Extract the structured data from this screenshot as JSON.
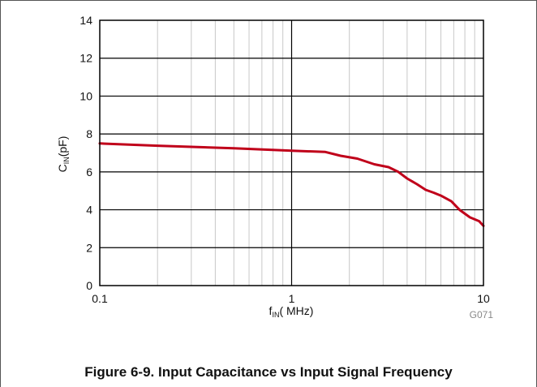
{
  "chart_data": {
    "type": "line",
    "title": "",
    "xlabel": {
      "main": "f",
      "sub": "IN",
      "rest": "( MHz)"
    },
    "ylabel": {
      "main": "C",
      "sub": "IN",
      "rest": "(pF)"
    },
    "xscale": "log",
    "xlim": [
      0.1,
      10
    ],
    "ylim": [
      0,
      14
    ],
    "x_ticks": [
      0.1,
      1,
      10
    ],
    "x_tick_labels": [
      "0.1",
      "1",
      "10"
    ],
    "y_ticks": [
      0,
      2,
      4,
      6,
      8,
      10,
      12,
      14
    ],
    "y_tick_labels": [
      "0",
      "2",
      "4",
      "6",
      "8",
      "10",
      "12",
      "14"
    ],
    "grid": true,
    "series": [
      {
        "color": "#c0001a",
        "x": [
          0.1,
          0.2,
          0.5,
          1.0,
          1.5,
          1.8,
          2.2,
          2.7,
          3.2,
          3.6,
          4.0,
          4.5,
          5.0,
          5.5,
          6.0,
          6.8,
          7.5,
          8.5,
          9.5,
          10.0
        ],
        "y": [
          7.5,
          7.38,
          7.25,
          7.12,
          7.05,
          6.85,
          6.7,
          6.4,
          6.25,
          6.0,
          5.65,
          5.35,
          5.05,
          4.9,
          4.75,
          4.45,
          4.0,
          3.6,
          3.4,
          3.15
        ]
      }
    ],
    "code": "G071"
  },
  "caption": "Figure 6-9. Input Capacitance vs Input Signal Frequency",
  "colors": {
    "line": "#c0001a",
    "grid_major": "#000000",
    "grid_minor": "#c8c8c8",
    "frame": "#555555"
  }
}
